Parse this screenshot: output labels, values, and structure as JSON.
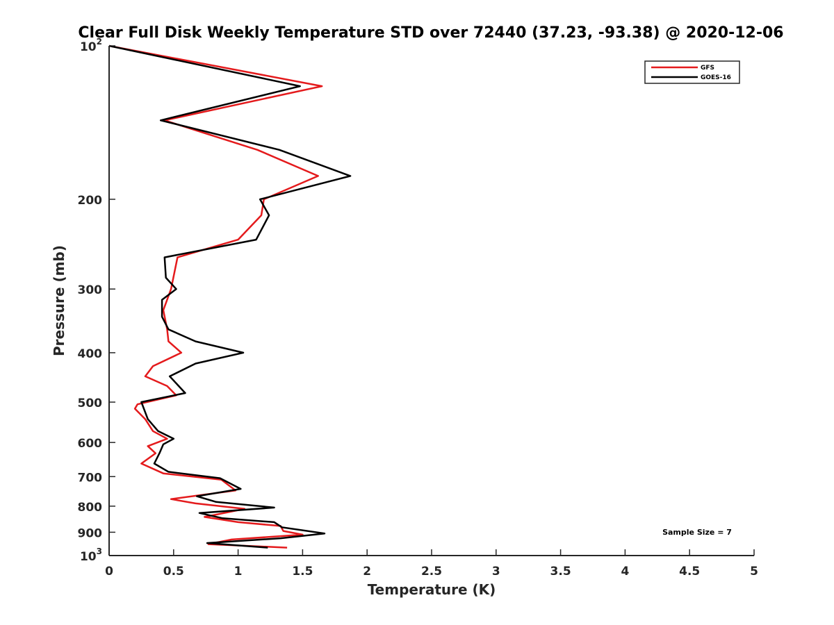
{
  "chart_data": {
    "type": "line",
    "title": "Clear Full Disk Weekly Temperature STD over 72440 (37.23, -93.38) @ 2020-12-06",
    "xlabel": "Temperature (K)",
    "ylabel": "Pressure (mb)",
    "xlim": [
      0,
      5
    ],
    "ylim": [
      100,
      1000
    ],
    "yscale": "log",
    "y_reversed": true,
    "grid": false,
    "legend_position": "top-right",
    "x_ticks": [
      "0",
      "0.5",
      "1",
      "1.5",
      "2",
      "2.5",
      "3",
      "3.5",
      "4",
      "4.5",
      "5"
    ],
    "y_ticks": [
      {
        "value": 100,
        "label": "10",
        "sup": "2"
      },
      {
        "value": 200,
        "label": "200"
      },
      {
        "value": 300,
        "label": "300"
      },
      {
        "value": 400,
        "label": "400"
      },
      {
        "value": 500,
        "label": "500"
      },
      {
        "value": 600,
        "label": "600"
      },
      {
        "value": 700,
        "label": "700"
      },
      {
        "value": 800,
        "label": "800"
      },
      {
        "value": 900,
        "label": "900"
      },
      {
        "value": 1000,
        "label": "10",
        "sup": "3"
      }
    ],
    "series": [
      {
        "name": "GFS",
        "color": "#e41a1c",
        "points": [
          {
            "x": 0.0,
            "y": 100
          },
          {
            "x": 1.65,
            "y": 120
          },
          {
            "x": 0.43,
            "y": 140
          },
          {
            "x": 1.15,
            "y": 160
          },
          {
            "x": 1.62,
            "y": 180
          },
          {
            "x": 1.2,
            "y": 200
          },
          {
            "x": 1.18,
            "y": 215
          },
          {
            "x": 1.0,
            "y": 240
          },
          {
            "x": 0.53,
            "y": 260
          },
          {
            "x": 0.48,
            "y": 300
          },
          {
            "x": 0.42,
            "y": 330
          },
          {
            "x": 0.45,
            "y": 360
          },
          {
            "x": 0.46,
            "y": 380
          },
          {
            "x": 0.56,
            "y": 400
          },
          {
            "x": 0.34,
            "y": 425
          },
          {
            "x": 0.28,
            "y": 445
          },
          {
            "x": 0.45,
            "y": 465
          },
          {
            "x": 0.52,
            "y": 485
          },
          {
            "x": 0.22,
            "y": 505
          },
          {
            "x": 0.2,
            "y": 515
          },
          {
            "x": 0.28,
            "y": 540
          },
          {
            "x": 0.34,
            "y": 570
          },
          {
            "x": 0.45,
            "y": 590
          },
          {
            "x": 0.3,
            "y": 610
          },
          {
            "x": 0.36,
            "y": 630
          },
          {
            "x": 0.25,
            "y": 660
          },
          {
            "x": 0.42,
            "y": 690
          },
          {
            "x": 0.87,
            "y": 710
          },
          {
            "x": 0.98,
            "y": 745
          },
          {
            "x": 0.48,
            "y": 775
          },
          {
            "x": 0.67,
            "y": 790
          },
          {
            "x": 1.05,
            "y": 810
          },
          {
            "x": 0.74,
            "y": 840
          },
          {
            "x": 1.0,
            "y": 860
          },
          {
            "x": 1.33,
            "y": 875
          },
          {
            "x": 1.35,
            "y": 895
          },
          {
            "x": 1.5,
            "y": 910
          },
          {
            "x": 0.95,
            "y": 930
          },
          {
            "x": 0.77,
            "y": 950
          },
          {
            "x": 1.38,
            "y": 965
          }
        ]
      },
      {
        "name": "GOES-16",
        "color": "#000000",
        "points": [
          {
            "x": 0.0,
            "y": 100
          },
          {
            "x": 1.48,
            "y": 120
          },
          {
            "x": 0.4,
            "y": 140
          },
          {
            "x": 1.32,
            "y": 160
          },
          {
            "x": 1.87,
            "y": 180
          },
          {
            "x": 1.17,
            "y": 200
          },
          {
            "x": 1.24,
            "y": 215
          },
          {
            "x": 1.14,
            "y": 240
          },
          {
            "x": 0.43,
            "y": 260
          },
          {
            "x": 0.44,
            "y": 285
          },
          {
            "x": 0.52,
            "y": 300
          },
          {
            "x": 0.41,
            "y": 315
          },
          {
            "x": 0.41,
            "y": 340
          },
          {
            "x": 0.46,
            "y": 360
          },
          {
            "x": 0.67,
            "y": 380
          },
          {
            "x": 1.04,
            "y": 400
          },
          {
            "x": 0.67,
            "y": 420
          },
          {
            "x": 0.47,
            "y": 445
          },
          {
            "x": 0.59,
            "y": 480
          },
          {
            "x": 0.25,
            "y": 500
          },
          {
            "x": 0.3,
            "y": 540
          },
          {
            "x": 0.38,
            "y": 570
          },
          {
            "x": 0.5,
            "y": 590
          },
          {
            "x": 0.42,
            "y": 605
          },
          {
            "x": 0.39,
            "y": 630
          },
          {
            "x": 0.35,
            "y": 660
          },
          {
            "x": 0.46,
            "y": 685
          },
          {
            "x": 0.86,
            "y": 705
          },
          {
            "x": 1.02,
            "y": 740
          },
          {
            "x": 0.68,
            "y": 765
          },
          {
            "x": 0.83,
            "y": 785
          },
          {
            "x": 1.28,
            "y": 805
          },
          {
            "x": 0.7,
            "y": 825
          },
          {
            "x": 0.88,
            "y": 845
          },
          {
            "x": 1.28,
            "y": 860
          },
          {
            "x": 1.34,
            "y": 880
          },
          {
            "x": 1.67,
            "y": 905
          },
          {
            "x": 1.33,
            "y": 925
          },
          {
            "x": 0.76,
            "y": 945
          },
          {
            "x": 1.23,
            "y": 965
          }
        ]
      }
    ],
    "annotations": [
      {
        "text": "Sample Size = 7",
        "position": "bottom-right"
      }
    ]
  }
}
